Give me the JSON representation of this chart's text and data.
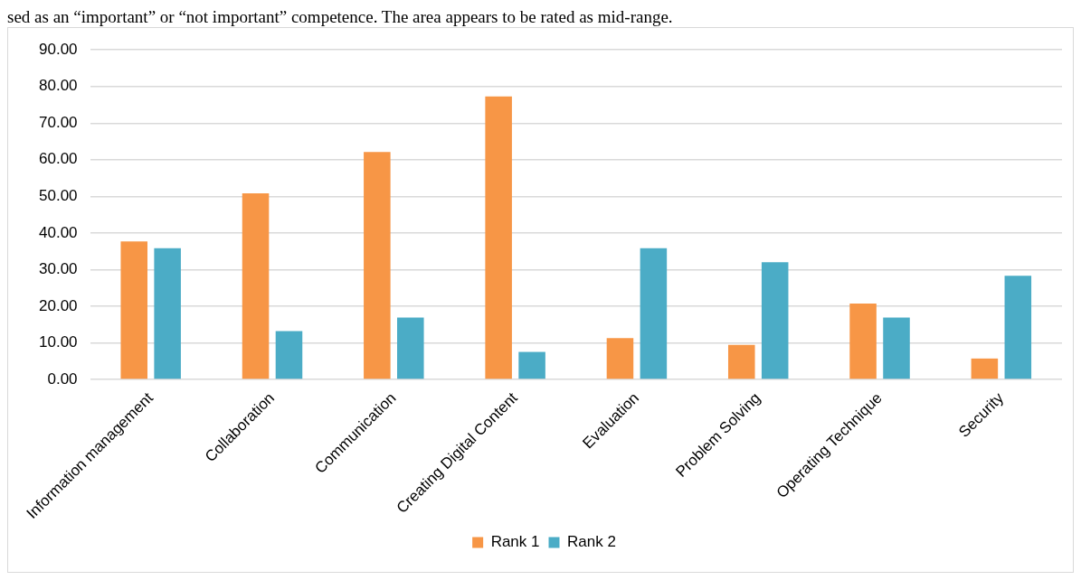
{
  "chart_data": {
    "type": "bar",
    "annotations": [
      "sed as an “important” or “not important” competence. The area appears to be rated as mid-range."
    ],
    "categories": [
      "Information management",
      "Collaboration",
      "Communication",
      "Creating Digital Content",
      "Evaluation",
      "Problem Solving",
      "Operating Technique",
      "Security"
    ],
    "series": [
      {
        "name": "Rank 1",
        "color": "#f79646",
        "values": [
          37.7,
          50.8,
          62.1,
          77.3,
          11.3,
          9.4,
          20.7,
          5.7
        ]
      },
      {
        "name": "Rank 2",
        "color": "#4bacc6",
        "values": [
          35.8,
          13.2,
          16.9,
          7.5,
          35.8,
          32.0,
          16.9,
          28.3
        ]
      }
    ],
    "ylim": [
      0,
      90
    ],
    "yticks": [
      {
        "value": 0,
        "label": "0.00"
      },
      {
        "value": 10,
        "label": "10.00"
      },
      {
        "value": 20,
        "label": "20.00"
      },
      {
        "value": 30,
        "label": "30.00"
      },
      {
        "value": 40,
        "label": "40.00"
      },
      {
        "value": 50,
        "label": "50.00"
      },
      {
        "value": 60,
        "label": "60.00"
      },
      {
        "value": 70,
        "label": "70.00"
      },
      {
        "value": 80,
        "label": "80.00"
      },
      {
        "value": 90,
        "label": "90.00"
      }
    ],
    "grid": "y",
    "legend": "bottom"
  }
}
